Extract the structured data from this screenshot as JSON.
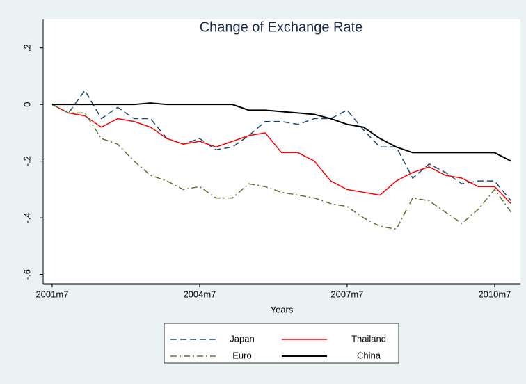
{
  "chart_data": {
    "type": "line",
    "title": "Change of Exchange Rate",
    "x_label": "Years",
    "x": [
      498,
      502,
      506,
      510,
      514,
      518,
      522,
      526,
      530,
      534,
      538,
      542,
      546,
      550,
      554,
      558,
      562,
      566,
      570,
      574,
      578,
      582,
      586,
      590,
      594,
      598,
      602,
      606,
      610
    ],
    "series": [
      {
        "name": "Japan",
        "color": "#1a476f",
        "dash": "dashed",
        "values": [
          0,
          -0.03,
          0.05,
          -0.05,
          -0.01,
          -0.05,
          -0.05,
          -0.12,
          -0.14,
          -0.12,
          -0.16,
          -0.15,
          -0.11,
          -0.06,
          -0.06,
          -0.07,
          -0.05,
          -0.05,
          -0.02,
          -0.09,
          -0.15,
          -0.15,
          -0.26,
          -0.21,
          -0.24,
          -0.28,
          -0.27,
          -0.27,
          -0.34
        ]
      },
      {
        "name": "Thailand",
        "color": "#ff0000",
        "dash": "solid",
        "values": [
          0,
          -0.03,
          -0.04,
          -0.08,
          -0.05,
          -0.06,
          -0.08,
          -0.12,
          -0.14,
          -0.13,
          -0.15,
          -0.13,
          -0.11,
          -0.1,
          -0.17,
          -0.17,
          -0.2,
          -0.27,
          -0.3,
          -0.31,
          -0.32,
          -0.27,
          -0.24,
          -0.22,
          -0.25,
          -0.26,
          -0.29,
          -0.29,
          -0.35
        ]
      },
      {
        "name": "Euro",
        "color": "#55752f",
        "dash": "dashdot",
        "values": [
          0,
          -0.03,
          -0.03,
          -0.12,
          -0.14,
          -0.2,
          -0.25,
          -0.27,
          -0.3,
          -0.29,
          -0.33,
          -0.33,
          -0.28,
          -0.29,
          -0.31,
          -0.32,
          -0.33,
          -0.35,
          -0.36,
          -0.4,
          -0.43,
          -0.44,
          -0.33,
          -0.34,
          -0.38,
          -0.42,
          -0.37,
          -0.3,
          -0.38
        ]
      },
      {
        "name": "China",
        "color": "#000000",
        "dash": "solid",
        "values": [
          0,
          0,
          0,
          0,
          0,
          0,
          0.005,
          0,
          0,
          0,
          0,
          0,
          -0.02,
          -0.02,
          -0.025,
          -0.03,
          -0.035,
          -0.05,
          -0.07,
          -0.08,
          -0.12,
          -0.15,
          -0.17,
          -0.17,
          -0.17,
          -0.17,
          -0.17,
          -0.17,
          -0.2
        ]
      }
    ],
    "xlim": [
      495.8,
      612.3
    ],
    "xticks": [
      {
        "value": 498,
        "label": "2001m7"
      },
      {
        "value": 534,
        "label": "2004m7"
      },
      {
        "value": 570,
        "label": "2007m7"
      },
      {
        "value": 606,
        "label": "2010m7"
      }
    ],
    "ylim": [
      -0.633,
      0.3
    ],
    "yticks": [
      {
        "value": 0.2,
        "label": ".2"
      },
      0,
      {
        "value": -0.2,
        "label": "-.2"
      },
      {
        "value": -0.4,
        "label": "-.4"
      },
      {
        "value": -0.6,
        "label": "-.6"
      }
    ],
    "legend_columns": 2
  }
}
